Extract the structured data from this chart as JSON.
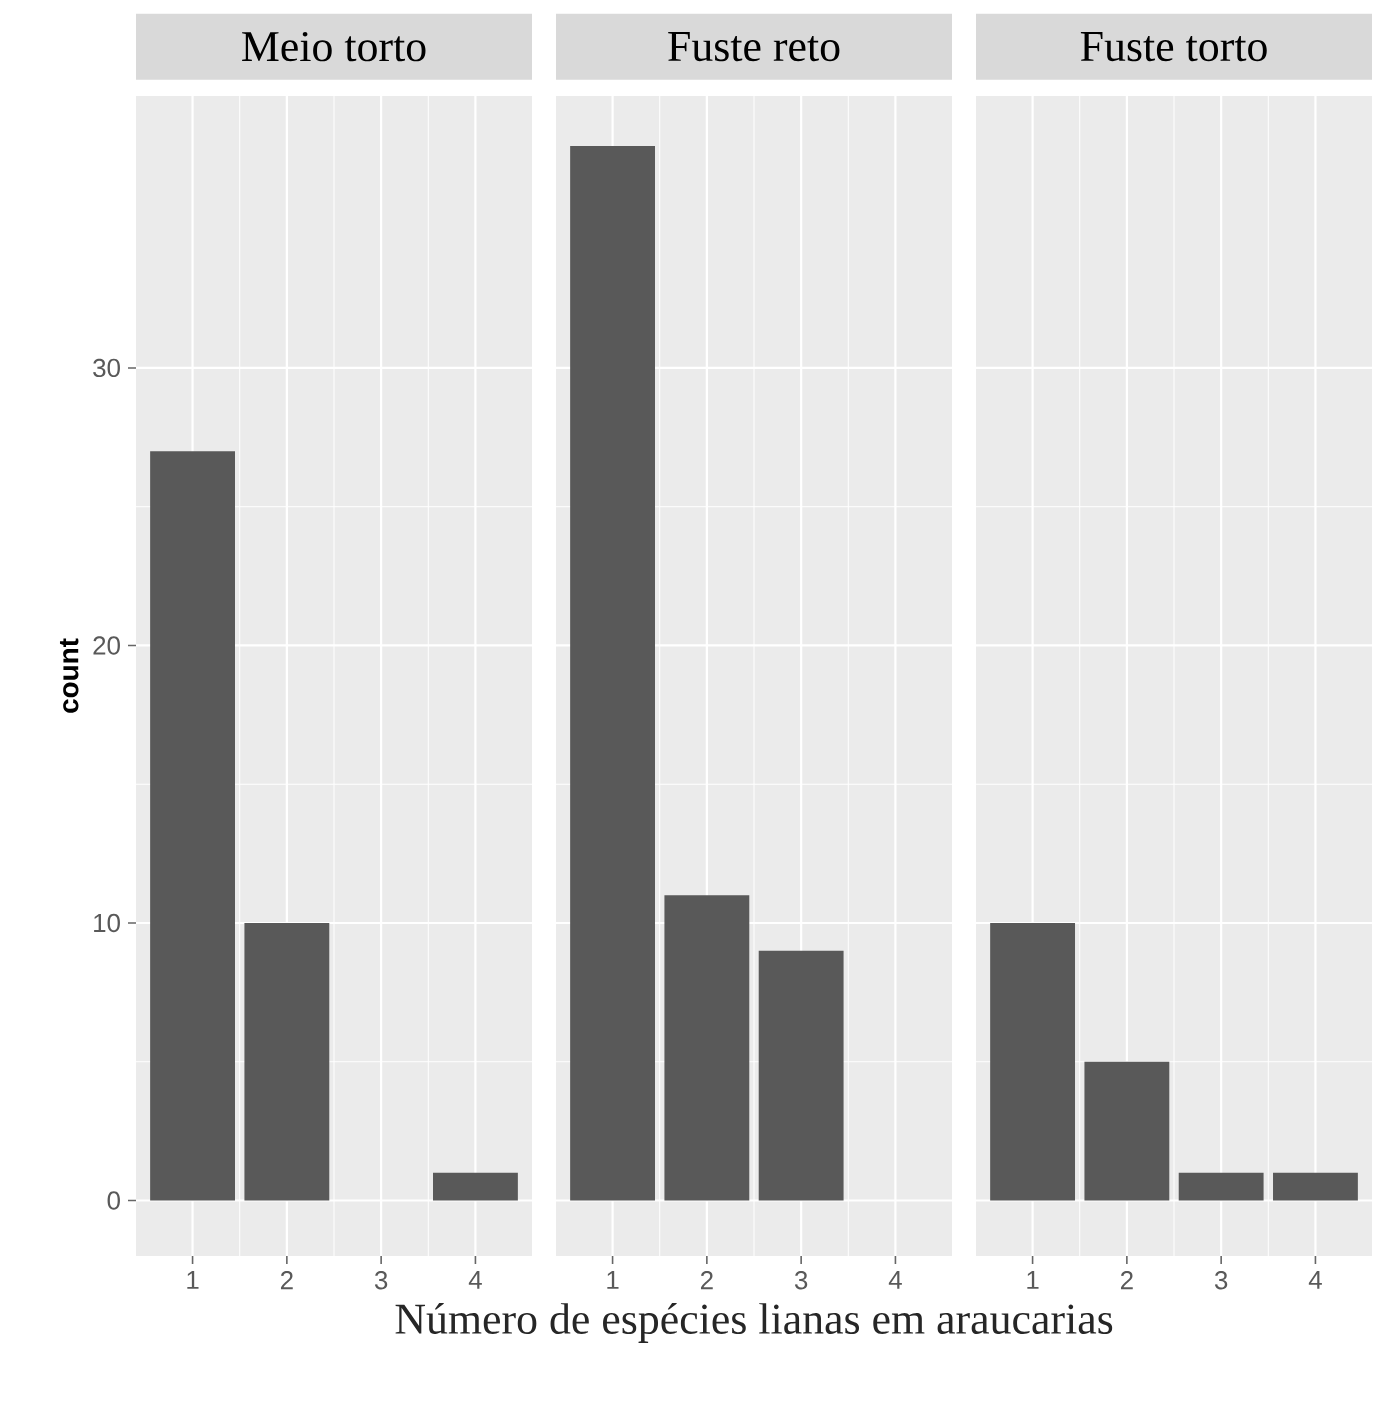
{
  "chart_data": [
    {
      "type": "bar",
      "title": "Meio torto",
      "ylabel": "count",
      "x": [
        1,
        2,
        3,
        4
      ],
      "values": [
        27,
        10,
        0,
        1
      ],
      "color": "#595959",
      "xlim": [
        0.4,
        4.6
      ],
      "ylim": [
        -2,
        39.8
      ],
      "xticks": [
        1,
        2,
        3,
        4
      ],
      "yticks": [
        0,
        10,
        20,
        30
      ],
      "grid": true
    },
    {
      "type": "bar",
      "title": "Fuste reto",
      "xlabel": "Número de espécies lianas em araucarias",
      "x": [
        1,
        2,
        3,
        4
      ],
      "values": [
        38,
        11,
        9,
        0
      ],
      "color": "#595959",
      "xlim": [
        0.4,
        4.6
      ],
      "ylim": [
        -2,
        39.8
      ],
      "xticks": [
        1,
        2,
        3,
        4
      ],
      "yticks": [
        0,
        10,
        20,
        30
      ],
      "grid": true,
      "tick_labels": "x"
    },
    {
      "type": "bar",
      "title": "Fuste torto",
      "x": [
        1,
        2,
        3,
        4
      ],
      "values": [
        10,
        5,
        1,
        1
      ],
      "color": "#595959",
      "xlim": [
        0.4,
        4.6
      ],
      "ylim": [
        -2,
        39.8
      ],
      "xticks": [
        1,
        2,
        3,
        4
      ],
      "yticks": [
        0,
        10,
        20,
        30
      ],
      "grid": true,
      "tick_labels": "x"
    }
  ]
}
